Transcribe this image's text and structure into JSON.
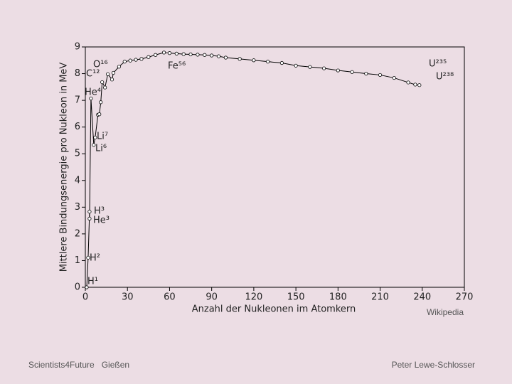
{
  "chart_data": {
    "type": "line",
    "x_label": "Anzahl der Nukleonen im Atomkern",
    "y_label": "Mittlere Bindungsenergie pro Nukleon in MeV",
    "x": [
      1,
      2,
      3,
      3,
      4,
      6,
      7,
      9,
      10,
      11,
      12,
      14,
      16,
      19,
      20,
      24,
      28,
      32,
      36,
      40,
      45,
      50,
      56,
      60,
      65,
      70,
      75,
      80,
      85,
      90,
      95,
      100,
      110,
      120,
      130,
      140,
      150,
      160,
      170,
      180,
      190,
      200,
      210,
      220,
      230,
      235,
      238
    ],
    "series": [
      {
        "color": "#000000",
        "values": [
          0,
          1.11,
          2.83,
          2.57,
          7.07,
          5.33,
          5.61,
          6.46,
          6.48,
          6.93,
          7.68,
          7.48,
          7.98,
          7.78,
          8.03,
          8.26,
          8.45,
          8.49,
          8.52,
          8.55,
          8.62,
          8.7,
          8.79,
          8.77,
          8.75,
          8.73,
          8.72,
          8.71,
          8.7,
          8.68,
          8.65,
          8.6,
          8.55,
          8.5,
          8.45,
          8.4,
          8.3,
          8.25,
          8.2,
          8.12,
          8.06,
          8.0,
          7.95,
          7.84,
          7.67,
          7.59,
          7.57
        ]
      }
    ],
    "xlim": [
      0,
      270
    ],
    "xticks": [
      0,
      30,
      60,
      90,
      120,
      150,
      180,
      210,
      240,
      270
    ],
    "ylim": [
      0,
      9
    ],
    "yticks": [
      0,
      1,
      2,
      3,
      4,
      5,
      6,
      7,
      8,
      9
    ],
    "annotations": [
      "H¹",
      "H²",
      "H³",
      "He³",
      "He⁴",
      "Li⁷",
      "Li⁶",
      "C¹²",
      "O¹⁶",
      "Fe⁵⁶",
      "U²³⁵",
      "U²³⁸"
    ]
  },
  "source": "Wikipedia",
  "footer": {
    "left": "Scientists4Future   Gießen",
    "right": "Peter Lewe-Schlosser"
  }
}
